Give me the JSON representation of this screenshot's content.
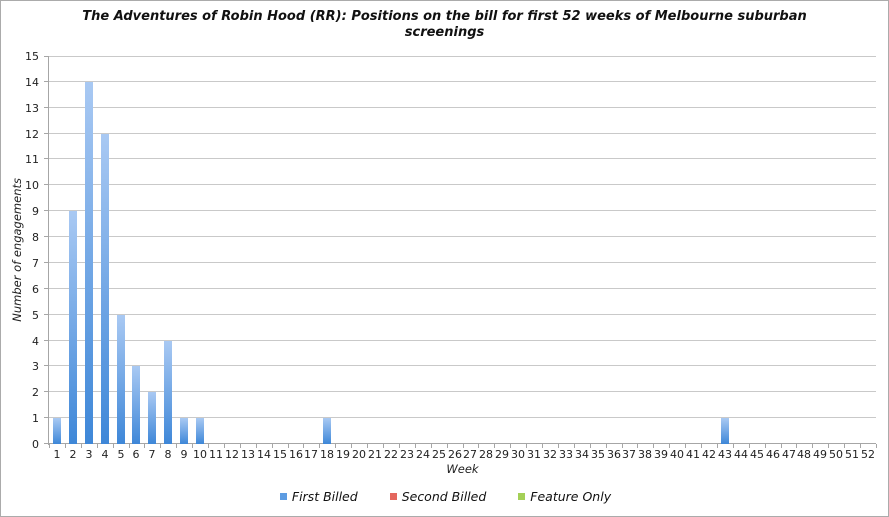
{
  "page": {
    "background": "#ffffff",
    "border_color": "#ababab"
  },
  "chart_data": {
    "type": "bar",
    "title": "The Adventures of Robin Hood (RR): Positions on the bill for first 52 weeks of Melbourne suburban screenings",
    "xlabel": "Week",
    "ylabel": "Number of engagements",
    "ylim": [
      0,
      15
    ],
    "ytick_step": 1,
    "grid": "horizontal",
    "legend_position": "bottom",
    "categories": [
      1,
      2,
      3,
      4,
      5,
      6,
      7,
      8,
      9,
      10,
      11,
      12,
      13,
      14,
      15,
      16,
      17,
      18,
      19,
      20,
      21,
      22,
      23,
      24,
      25,
      26,
      27,
      28,
      29,
      30,
      31,
      32,
      33,
      34,
      35,
      36,
      37,
      38,
      39,
      40,
      41,
      42,
      43,
      44,
      45,
      46,
      47,
      48,
      49,
      50,
      51,
      52
    ],
    "series": [
      {
        "name": "First Billed",
        "legend_color": "#5d9ce2",
        "bar_gradient_top": "#a9c9f3",
        "bar_gradient_bottom": "#3e87d8",
        "values": [
          1,
          9,
          14,
          12,
          5,
          3,
          2,
          4,
          1,
          1,
          0,
          0,
          0,
          0,
          0,
          0,
          0,
          1,
          0,
          0,
          0,
          0,
          0,
          0,
          0,
          0,
          0,
          0,
          0,
          0,
          0,
          0,
          0,
          0,
          0,
          0,
          0,
          0,
          0,
          0,
          0,
          0,
          1,
          0,
          0,
          0,
          0,
          0,
          0,
          0,
          0,
          0
        ]
      },
      {
        "name": "Second Billed",
        "legend_color": "#e4675e",
        "values": [
          0,
          0,
          0,
          0,
          0,
          0,
          0,
          0,
          0,
          0,
          0,
          0,
          0,
          0,
          0,
          0,
          0,
          0,
          0,
          0,
          0,
          0,
          0,
          0,
          0,
          0,
          0,
          0,
          0,
          0,
          0,
          0,
          0,
          0,
          0,
          0,
          0,
          0,
          0,
          0,
          0,
          0,
          0,
          0,
          0,
          0,
          0,
          0,
          0,
          0,
          0,
          0
        ]
      },
      {
        "name": "Feature Only",
        "legend_color": "#a4d057",
        "values": [
          0,
          0,
          0,
          0,
          0,
          0,
          0,
          0,
          0,
          0,
          0,
          0,
          0,
          0,
          0,
          0,
          0,
          0,
          0,
          0,
          0,
          0,
          0,
          0,
          0,
          0,
          0,
          0,
          0,
          0,
          0,
          0,
          0,
          0,
          0,
          0,
          0,
          0,
          0,
          0,
          0,
          0,
          0,
          0,
          0,
          0,
          0,
          0,
          0,
          0,
          0,
          0
        ]
      }
    ]
  }
}
